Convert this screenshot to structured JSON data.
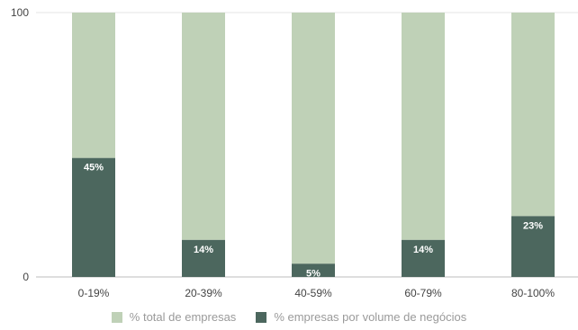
{
  "chart_data": {
    "type": "bar",
    "stacked": true,
    "categories": [
      "0-19%",
      "20-39%",
      "40-59%",
      "60-79%",
      "80-100%"
    ],
    "series": [
      {
        "name": "% empresas por volume de negócios",
        "values": [
          45,
          14,
          5,
          14,
          23
        ],
        "labels": [
          "45%",
          "14%",
          "5%",
          "14%",
          "23%"
        ],
        "color": "#4c675e"
      },
      {
        "name": "% total de empresas",
        "values": [
          55,
          86,
          95,
          86,
          77
        ],
        "color": "#bfd1b7"
      }
    ],
    "y_ticks": [
      "0",
      "100"
    ],
    "ylim": [
      0,
      100
    ],
    "grid": true,
    "legend_position": "bottom"
  }
}
